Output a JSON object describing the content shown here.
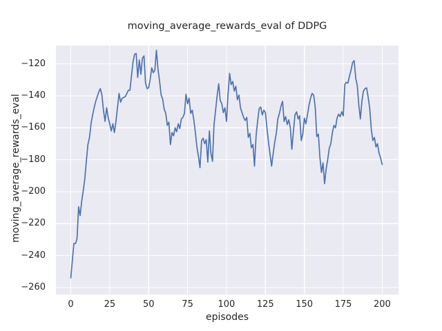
{
  "chart_data": {
    "type": "line",
    "title": "moving_average_rewards_eval of DDPG",
    "xlabel": "episodes",
    "ylabel": "moving_average_rewards_eval",
    "xlim": [
      -10,
      210
    ],
    "ylim": [
      -264,
      -105
    ],
    "xticks": [
      0,
      25,
      50,
      75,
      100,
      125,
      150,
      175,
      200
    ],
    "yticks": [
      -120,
      -140,
      -160,
      -180,
      -200,
      -220,
      -240,
      -260
    ],
    "grid": true,
    "legend": null,
    "colors": {
      "line": "#4c72b0",
      "axes_background": "#eaeaf2",
      "grid": "#ffffff",
      "text": "#262626",
      "figure_background": "#ffffff"
    },
    "series": [
      {
        "name": "moving_average_rewards_eval",
        "x_start": 0,
        "x_step": 1,
        "values": [
          -254,
          -243,
          -232.5,
          -232.5,
          -229.5,
          -209.5,
          -215,
          -206,
          -199.5,
          -192,
          -181,
          -170.5,
          -166,
          -157.5,
          -152,
          -147.5,
          -143.5,
          -140.5,
          -137.5,
          -135.5,
          -139.5,
          -149,
          -156,
          -147.5,
          -153.5,
          -157.5,
          -162,
          -157.5,
          -163,
          -156,
          -147.5,
          -138.5,
          -144,
          -141.5,
          -141,
          -140.5,
          -138.5,
          -136.5,
          -136.5,
          -127.5,
          -118.5,
          -114,
          -113.5,
          -128.5,
          -117.5,
          -126.5,
          -116.5,
          -115,
          -132,
          -135.5,
          -135,
          -129.5,
          -122.5,
          -125.5,
          -124,
          -111.5,
          -123.5,
          -130.5,
          -139.5,
          -142,
          -148.5,
          -151,
          -158.5,
          -156.5,
          -170.5,
          -163,
          -165,
          -160,
          -162.5,
          -157.5,
          -160.5,
          -154.5,
          -153.5,
          -151,
          -139,
          -145,
          -141.5,
          -151,
          -149,
          -155,
          -163,
          -172,
          -178,
          -185,
          -168,
          -166.5,
          -170,
          -167.5,
          -181.5,
          -162,
          -176,
          -181,
          -158,
          -149,
          -140,
          -132.5,
          -143,
          -145,
          -150.5,
          -147.5,
          -156,
          -139,
          -126,
          -133,
          -131,
          -137,
          -134,
          -142.5,
          -139.5,
          -147.5,
          -150.5,
          -153.5,
          -155.5,
          -153.5,
          -166,
          -163.5,
          -172.5,
          -170.5,
          -184,
          -165,
          -156,
          -148,
          -147,
          -152,
          -149,
          -150.5,
          -160.5,
          -169,
          -177,
          -184,
          -176,
          -169,
          -163.5,
          -154.5,
          -151,
          -146.5,
          -143.5,
          -156,
          -153,
          -158,
          -155,
          -160,
          -173.5,
          -162,
          -152,
          -150,
          -154.5,
          -152.5,
          -168,
          -164,
          -154,
          -157.5,
          -152,
          -146,
          -141.5,
          -138.5,
          -139.5,
          -147.5,
          -165.5,
          -164,
          -178.5,
          -188,
          -182,
          -195,
          -186,
          -180,
          -173,
          -170,
          -163,
          -158.5,
          -160,
          -154,
          -151.5,
          -153,
          -150,
          -152.5,
          -133,
          -131.5,
          -132,
          -127.5,
          -124,
          -119,
          -118,
          -129,
          -133.5,
          -146,
          -154.5,
          -143,
          -137,
          -135.5,
          -135,
          -141,
          -148,
          -161,
          -168,
          -166,
          -172,
          -170,
          -176,
          -179,
          -183
        ]
      }
    ]
  }
}
